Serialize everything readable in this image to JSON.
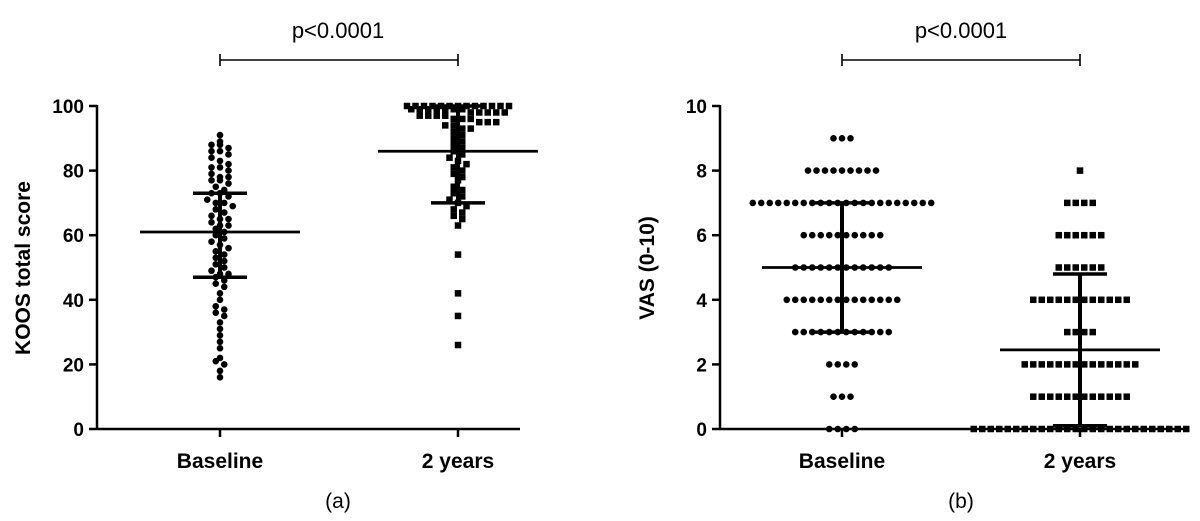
{
  "chart_data": [
    {
      "type": "scatter",
      "panel_label": "(a)",
      "ylabel": "KOOS total score",
      "ylim": [
        0,
        100
      ],
      "yticks": [
        0,
        20,
        40,
        60,
        80,
        100
      ],
      "categories": [
        "Baseline",
        "2 years"
      ],
      "significance": "p<0.0001",
      "groups": [
        {
          "category": "Baseline",
          "marker": "circle",
          "mean": 61,
          "sd_low": 47,
          "sd_high": 73,
          "values": [
            91,
            89,
            88,
            88,
            87,
            86,
            86,
            85,
            84,
            83,
            82,
            81,
            81,
            80,
            79,
            78,
            78,
            77,
            77,
            76,
            75,
            74,
            73,
            73,
            72,
            71,
            70,
            70,
            69,
            68,
            67,
            66,
            65,
            65,
            64,
            63,
            63,
            62,
            61,
            60,
            59,
            58,
            57,
            56,
            55,
            54,
            53,
            52,
            51,
            50,
            49,
            48,
            48,
            47,
            46,
            45,
            44,
            42,
            40,
            38,
            37,
            36,
            35,
            33,
            31,
            29,
            27,
            25,
            22,
            21,
            20,
            18,
            16
          ]
        },
        {
          "category": "2 years",
          "marker": "square",
          "mean": 86,
          "sd_low": 70,
          "sd_high": 100,
          "values": [
            100,
            100,
            100,
            100,
            100,
            100,
            100,
            100,
            100,
            100,
            100,
            100,
            100,
            99,
            99,
            99,
            99,
            99,
            99,
            99,
            98,
            98,
            98,
            98,
            98,
            97,
            97,
            97,
            97,
            96,
            96,
            96,
            95,
            95,
            95,
            94,
            94,
            93,
            93,
            92,
            91,
            90,
            89,
            88,
            87,
            86,
            85,
            84,
            83,
            82,
            81,
            80,
            79,
            78,
            77,
            75,
            74,
            73,
            72,
            71,
            70,
            69,
            68,
            67,
            66,
            65,
            63,
            54,
            42,
            35,
            26
          ]
        }
      ]
    },
    {
      "type": "scatter",
      "panel_label": "(b)",
      "ylabel": "VAS (0-10)",
      "ylim": [
        0,
        10
      ],
      "yticks": [
        0,
        2,
        4,
        6,
        8,
        10
      ],
      "categories": [
        "Baseline",
        "2 years"
      ],
      "significance": "p<0.0001",
      "groups": [
        {
          "category": "Baseline",
          "marker": "circle",
          "mean": 5,
          "sd_low": 3,
          "sd_high": 7,
          "counts": {
            "0": 4,
            "1": 3,
            "2": 4,
            "3": 12,
            "4": 14,
            "5": 12,
            "6": 10,
            "7": 22,
            "8": 9,
            "9": 3
          }
        },
        {
          "category": "2 years",
          "marker": "square",
          "mean": 2.45,
          "sd_low": 0.1,
          "sd_high": 4.8,
          "counts": {
            "0": 26,
            "1": 12,
            "2": 14,
            "3": 4,
            "4": 12,
            "5": 6,
            "6": 6,
            "7": 4,
            "8": 1
          }
        }
      ]
    }
  ]
}
